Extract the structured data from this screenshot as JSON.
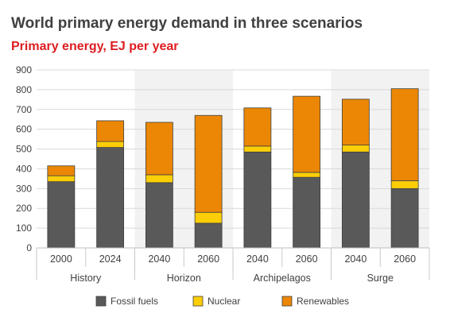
{
  "title": "World primary energy demand in three scenarios",
  "subtitle": "Primary energy, EJ per year",
  "chart_data": {
    "type": "bar",
    "stacked": true,
    "categories": [
      "2000",
      "2024",
      "2040",
      "2060",
      "2040",
      "2060",
      "2040",
      "2060"
    ],
    "groups": [
      {
        "name": "History",
        "start": 0,
        "end": 1,
        "shaded": false
      },
      {
        "name": "Horizon",
        "start": 2,
        "end": 3,
        "shaded": true
      },
      {
        "name": "Archipelagos",
        "start": 4,
        "end": 5,
        "shaded": false
      },
      {
        "name": "Surge",
        "start": 6,
        "end": 7,
        "shaded": true
      }
    ],
    "series": [
      {
        "name": "Fossil fuels",
        "color": "#595959",
        "values": [
          335,
          508,
          330,
          125,
          485,
          357,
          485,
          300
        ]
      },
      {
        "name": "Nuclear",
        "color": "#fbce07",
        "values": [
          30,
          30,
          40,
          55,
          30,
          25,
          35,
          40
        ]
      },
      {
        "name": "Renewables",
        "color": "#eb8705",
        "values": [
          50,
          105,
          265,
          490,
          193,
          385,
          232,
          465
        ]
      }
    ],
    "yticks": [
      "0",
      "100",
      "200",
      "300",
      "400",
      "500",
      "600",
      "700",
      "800",
      "900"
    ],
    "ylim": [
      0,
      900
    ],
    "grid": true,
    "legend_position": "bottom"
  }
}
